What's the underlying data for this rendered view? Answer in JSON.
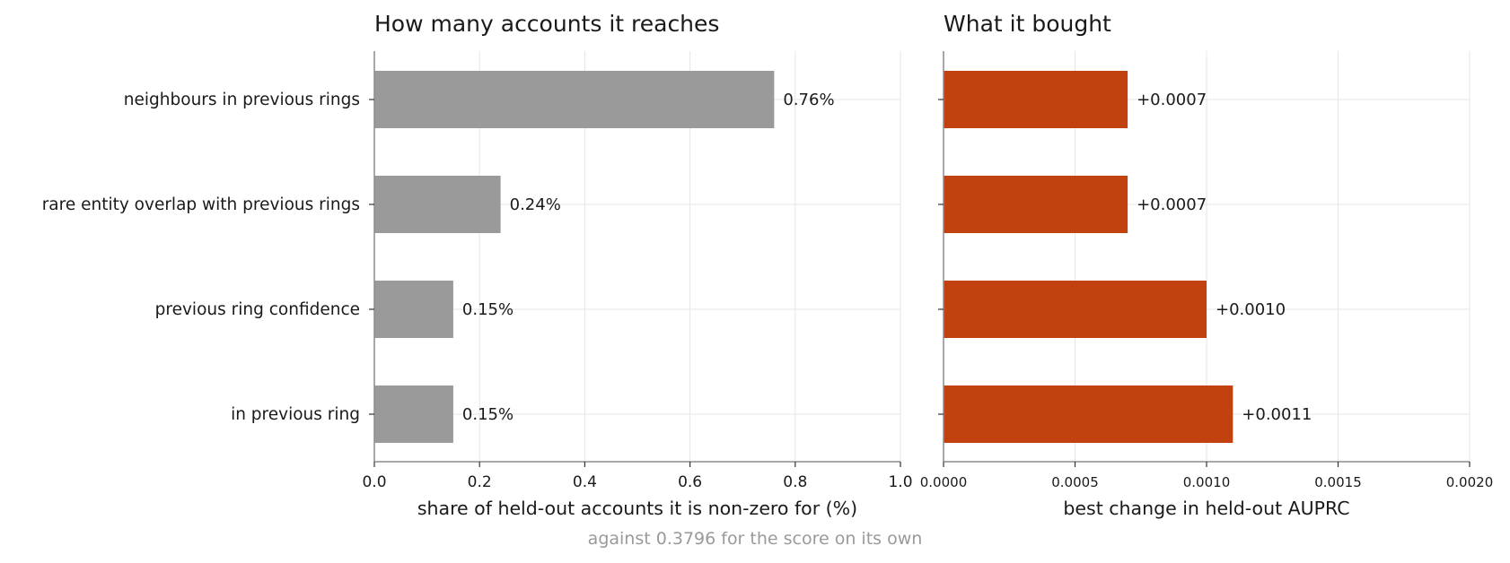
{
  "footnote": "against 0.3796 for the score on its own",
  "colors": {
    "left_bars": "#9a9a9a",
    "right_bars": "#c1410f",
    "grid": "#e6e6e6",
    "axis": "#8c8c8c",
    "text": "#1a1a1a",
    "footnote": "#9a9a9a"
  },
  "chart_data": [
    {
      "type": "bar",
      "orientation": "horizontal",
      "title": "How many accounts it reaches",
      "xlabel": "share of held-out accounts it is non-zero for (%)",
      "ylabel": "",
      "categories": [
        "neighbours in previous rings",
        "rare entity overlap with previous rings",
        "previous ring confidence",
        "in previous ring"
      ],
      "values": [
        0.76,
        0.24,
        0.15,
        0.15
      ],
      "value_labels": [
        "0.76%",
        "0.24%",
        "0.15%",
        "0.15%"
      ],
      "xlim": [
        0,
        1.0
      ],
      "xticks": [
        0.0,
        0.2,
        0.4,
        0.6,
        0.8,
        1.0
      ],
      "xtick_labels": [
        "0.0",
        "0.2",
        "0.4",
        "0.6",
        "0.8",
        "1.0"
      ],
      "grid": true,
      "color": "#9a9a9a"
    },
    {
      "type": "bar",
      "orientation": "horizontal",
      "title": "What it bought",
      "xlabel": "best change in held-out AUPRC",
      "ylabel": "",
      "categories": [
        "neighbours in previous rings",
        "rare entity overlap with previous rings",
        "previous ring confidence",
        "in previous ring"
      ],
      "values": [
        0.0007,
        0.0007,
        0.001,
        0.0011
      ],
      "value_labels": [
        "+0.0007",
        "+0.0007",
        "+0.0010",
        "+0.0011"
      ],
      "xlim": [
        0,
        0.002
      ],
      "xticks": [
        0.0,
        0.0005,
        0.001,
        0.0015,
        0.002
      ],
      "xtick_labels": [
        "0.0000",
        "0.0005",
        "0.0010",
        "0.0015",
        "0.0020"
      ],
      "grid": true,
      "color": "#c1410f"
    }
  ]
}
